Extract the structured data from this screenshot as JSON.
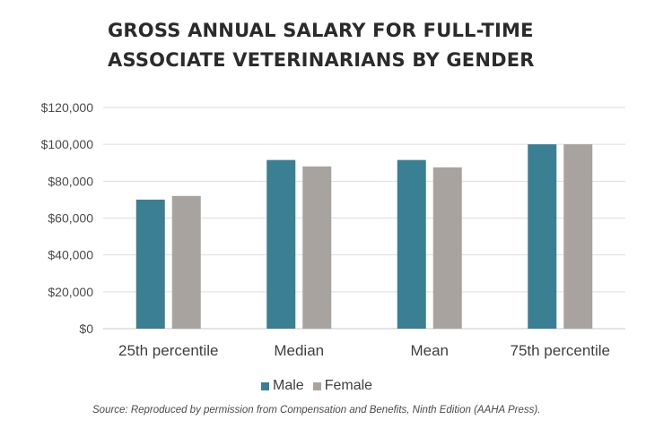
{
  "title_line1": "GROSS ANNUAL SALARY FOR FULL-TIME",
  "title_line2": "ASSOCIATE VETERINARIANS BY GENDER",
  "source": "Source: Reproduced by permission from Compensation and Benefits, Ninth Edition (AAHA Press).",
  "chart_data": {
    "type": "bar",
    "title": "GROSS ANNUAL SALARY FOR FULL-TIME ASSOCIATE VETERINARIANS BY GENDER",
    "categories": [
      "25th percentile",
      "Median",
      "Mean",
      "75th percentile"
    ],
    "series": [
      {
        "name": "Male",
        "color": "#3a7f93",
        "values": [
          70000,
          91500,
          91500,
          100000
        ]
      },
      {
        "name": "Female",
        "color": "#a8a39e",
        "values": [
          72000,
          88000,
          87500,
          100000
        ]
      }
    ],
    "ylim": [
      0,
      120000
    ],
    "yticks": [
      0,
      20000,
      40000,
      60000,
      80000,
      100000,
      120000
    ],
    "ytick_labels": [
      "$0",
      "$20,000",
      "$40,000",
      "$60,000",
      "$80,000",
      "$100,000",
      "$120,000"
    ],
    "xlabel": "",
    "ylabel": "",
    "grid": true,
    "legend": "bottom"
  }
}
